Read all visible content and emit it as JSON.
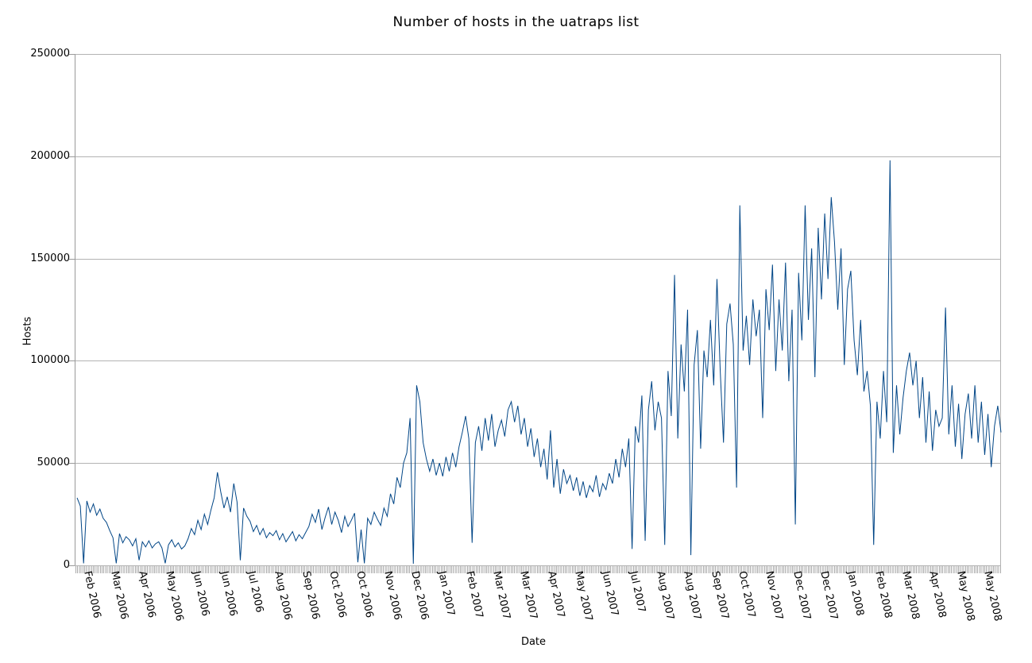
{
  "chart_data": {
    "type": "line",
    "title": "Number of hosts in the uatraps list",
    "xlabel": "Date",
    "ylabel": "Hosts",
    "ylim": [
      0,
      250000
    ],
    "y_ticks": [
      0,
      50000,
      100000,
      150000,
      200000,
      250000
    ],
    "x_tick_labels": [
      "Feb 2006",
      "Mar 2006",
      "Apr 2006",
      "May 2006",
      "Jun 2006",
      "Jun 2006",
      "Jul 2006",
      "Aug 2006",
      "Sep 2006",
      "Oct 2006",
      "Oct 2006",
      "Nov 2006",
      "Dec 2006",
      "Jan 2007",
      "Feb 2007",
      "Mar 2007",
      "Mar 2007",
      "Apr 2007",
      "May 2007",
      "Jun 2007",
      "Jul 2007",
      "Aug 2007",
      "Aug 2007",
      "Sep 2007",
      "Oct 2007",
      "Nov 2007",
      "Dec 2007",
      "Dec 2007",
      "Jan 2008",
      "Feb 2008",
      "Mar 2008",
      "Apr 2008",
      "May 2008",
      "May 2008"
    ],
    "grid": true,
    "legend": "none",
    "colors": {
      "series": "#004586",
      "grid": "#b3b3b3",
      "axis": "#9a9a9a",
      "text": "#000000",
      "background": "#ffffff"
    },
    "series": [
      {
        "name": "Hosts",
        "values": [
          33000,
          29000,
          1000,
          31500,
          26000,
          30000,
          24500,
          27500,
          23000,
          21000,
          17000,
          13500,
          1000,
          15500,
          11000,
          14000,
          12500,
          9500,
          13000,
          2500,
          11500,
          9000,
          12000,
          8500,
          10500,
          11500,
          8500,
          1000,
          10000,
          12500,
          9000,
          11000,
          8000,
          9500,
          13000,
          18000,
          15000,
          22000,
          17500,
          25000,
          20000,
          27000,
          33000,
          45500,
          36000,
          28000,
          33500,
          26000,
          40000,
          31000,
          2500,
          28000,
          24000,
          21500,
          16500,
          19500,
          15000,
          18000,
          13500,
          16000,
          14500,
          17000,
          12500,
          15500,
          11500,
          14000,
          16500,
          12000,
          15000,
          13000,
          16000,
          19000,
          25000,
          21000,
          27500,
          17500,
          23500,
          28500,
          20000,
          26000,
          22000,
          16000,
          24000,
          19000,
          22000,
          25500,
          1500,
          17500,
          1000,
          23000,
          20000,
          26000,
          22500,
          19500,
          28000,
          24000,
          35000,
          30000,
          43000,
          38000,
          50000,
          55000,
          72000,
          800,
          88000,
          80000,
          60000,
          52000,
          46000,
          52000,
          44000,
          50000,
          43500,
          53000,
          46000,
          55000,
          48000,
          58000,
          65000,
          73000,
          62000,
          11000,
          60000,
          68000,
          56000,
          72000,
          61000,
          74000,
          58000,
          66000,
          71000,
          63000,
          76000,
          80000,
          70000,
          78000,
          64000,
          72000,
          58000,
          67000,
          53000,
          62000,
          48000,
          57000,
          42000,
          66000,
          38000,
          52000,
          35000,
          47000,
          40000,
          44000,
          36500,
          43000,
          34000,
          41000,
          33000,
          39000,
          36000,
          44000,
          33500,
          40000,
          37000,
          45000,
          40000,
          52000,
          43000,
          57000,
          48000,
          62000,
          8000,
          68000,
          60000,
          83000,
          12000,
          76000,
          90000,
          66000,
          80000,
          72000,
          10000,
          95000,
          73000,
          142000,
          62000,
          108000,
          85000,
          125000,
          5000,
          98000,
          115000,
          57000,
          105000,
          92000,
          120000,
          88000,
          140000,
          95000,
          60000,
          118000,
          128000,
          108000,
          38000,
          176000,
          105000,
          122000,
          98000,
          130000,
          112000,
          125000,
          72000,
          135000,
          115000,
          147000,
          95000,
          130000,
          105000,
          148000,
          90000,
          125000,
          20000,
          143000,
          110000,
          176000,
          120000,
          155000,
          92000,
          165000,
          130000,
          172000,
          140000,
          180000,
          158000,
          125000,
          155000,
          98000,
          135000,
          144000,
          110000,
          93000,
          120000,
          85000,
          95000,
          78000,
          10000,
          80000,
          62000,
          95000,
          70000,
          198000,
          55000,
          88000,
          64000,
          82000,
          95000,
          104000,
          88000,
          100000,
          72000,
          92000,
          60000,
          85000,
          56000,
          76000,
          68000,
          72000,
          126000,
          64000,
          88000,
          58000,
          79000,
          52000,
          74000,
          84000,
          62000,
          88000,
          60000,
          80000,
          54000,
          74000,
          48000,
          68000,
          78000,
          65000
        ]
      }
    ]
  }
}
